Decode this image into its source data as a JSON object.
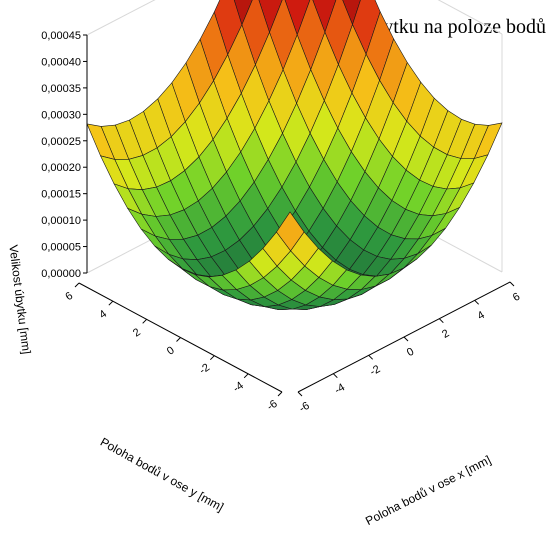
{
  "chart_data": {
    "type": "surface",
    "title": "Závislost velikosti úbytku na poloze bodů",
    "xlabel": "Poloha bodů v ose x [mm]",
    "ylabel": "Poloha bodů v ose y [mm]",
    "zlabel": "Velikost úbytku [mm]",
    "x_ticks": [
      "-6",
      "-4",
      "-2",
      "0",
      "2",
      "4",
      "6"
    ],
    "y_ticks": [
      "-6",
      "-4",
      "-2",
      "0",
      "2",
      "4",
      "6"
    ],
    "z_ticks": [
      "0,00000",
      "0,00005",
      "0,00010",
      "0,00015",
      "0,00020",
      "0,00025",
      "0,00030",
      "0,00035",
      "0,00040",
      "0,00045"
    ],
    "xlim": [
      -6,
      6
    ],
    "ylim": [
      -6,
      6
    ],
    "zlim": [
      0,
      0.00045
    ],
    "grid": true,
    "colormap": [
      "#1f6b3a",
      "#2f9a3e",
      "#6fd12a",
      "#d8e81a",
      "#f5c318",
      "#ee7a12",
      "#d81d10",
      "#8e0d0a"
    ],
    "surface": {
      "description_free_model": "z = a*(x - x0)^2 + b*(y - y0)^2 + c*x*y",
      "x_samples": [
        -6,
        -5.2,
        -4.4,
        -3.6,
        -2.8,
        -2,
        -1.2,
        -0.4,
        0.4,
        1.2,
        2,
        2.8,
        3.6,
        4.4,
        5.2,
        6
      ],
      "y_samples": [
        -6,
        -5.2,
        -4.4,
        -3.6,
        -2.8,
        -2,
        -1.2,
        -0.4,
        0.4,
        1.2,
        2,
        2.8,
        3.6,
        4.4,
        5.2,
        6
      ],
      "corner_values": {
        "x_min_y_min": 2e-05,
        "x_max_y_min": 0.0002,
        "x_min_y_max": 0.0002,
        "x_max_y_max": 0.00045
      },
      "min_value": 0.0
    }
  }
}
